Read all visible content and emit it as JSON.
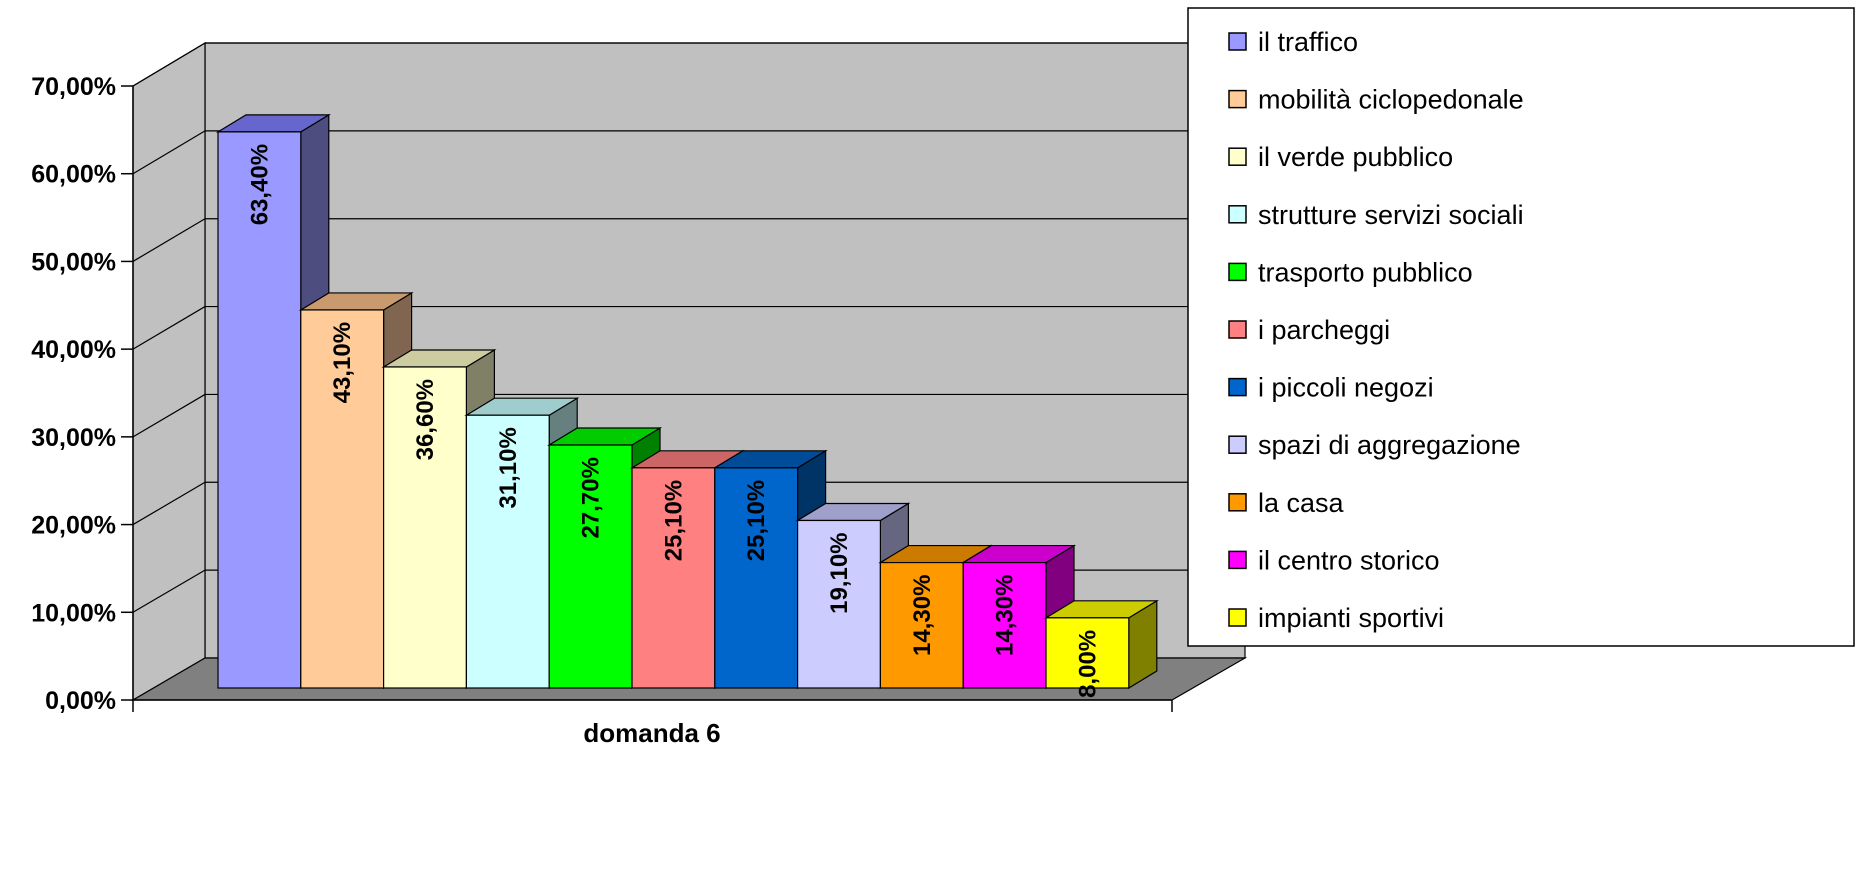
{
  "chart_data": {
    "type": "bar",
    "style": "3d-column",
    "xlabel": "domanda 6",
    "ylabel": "",
    "ylim": [
      0,
      70
    ],
    "yticks": [
      "0,00%",
      "10,00%",
      "20,00%",
      "30,00%",
      "40,00%",
      "50,00%",
      "60,00%",
      "70,00%"
    ],
    "grid": true,
    "legend_position": "right",
    "categories": [
      "domanda 6"
    ],
    "series": [
      {
        "name": "il traffico",
        "value": 63.4,
        "label": "63,40%",
        "color": "#9999ff",
        "side": "#4d4d80",
        "top": "#6666cc"
      },
      {
        "name": "mobilità ciclopedonale",
        "value": 43.1,
        "label": "43,10%",
        "color": "#ffcc99",
        "side": "#806650",
        "top": "#c89a6e"
      },
      {
        "name": "il verde pubblico",
        "value": 36.6,
        "label": "36,60%",
        "color": "#ffffcc",
        "side": "#808066",
        "top": "#cccca0"
      },
      {
        "name": "strutture servizi sociali",
        "value": 31.1,
        "label": "31,10%",
        "color": "#ccffff",
        "side": "#668080",
        "top": "#9fcccc"
      },
      {
        "name": "trasporto pubblico",
        "value": 27.7,
        "label": "27,70%",
        "color": "#00ff00",
        "side": "#008000",
        "top": "#00cc00"
      },
      {
        "name": "i parcheggi",
        "value": 25.1,
        "label": "25,10%",
        "color": "#ff8080",
        "side": "#804040",
        "top": "#cc6666"
      },
      {
        "name": "i piccoli negozi",
        "value": 25.1,
        "label": "25,10%",
        "color": "#0066cc",
        "side": "#003366",
        "top": "#004c99"
      },
      {
        "name": "spazi di aggregazione",
        "value": 19.1,
        "label": "19,10%",
        "color": "#ccccff",
        "side": "#666680",
        "top": "#9f9fcc"
      },
      {
        "name": "la casa",
        "value": 14.3,
        "label": "14,30%",
        "color": "#ff9900",
        "side": "#804c00",
        "top": "#cc7a00"
      },
      {
        "name": "il centro storico",
        "value": 14.3,
        "label": "14,30%",
        "color": "#ff00ff",
        "side": "#800080",
        "top": "#cc00cc"
      },
      {
        "name": "impianti sportivi",
        "value": 8.0,
        "label": "8,00%",
        "color": "#ffff00",
        "side": "#808000",
        "top": "#cccc00"
      }
    ]
  }
}
